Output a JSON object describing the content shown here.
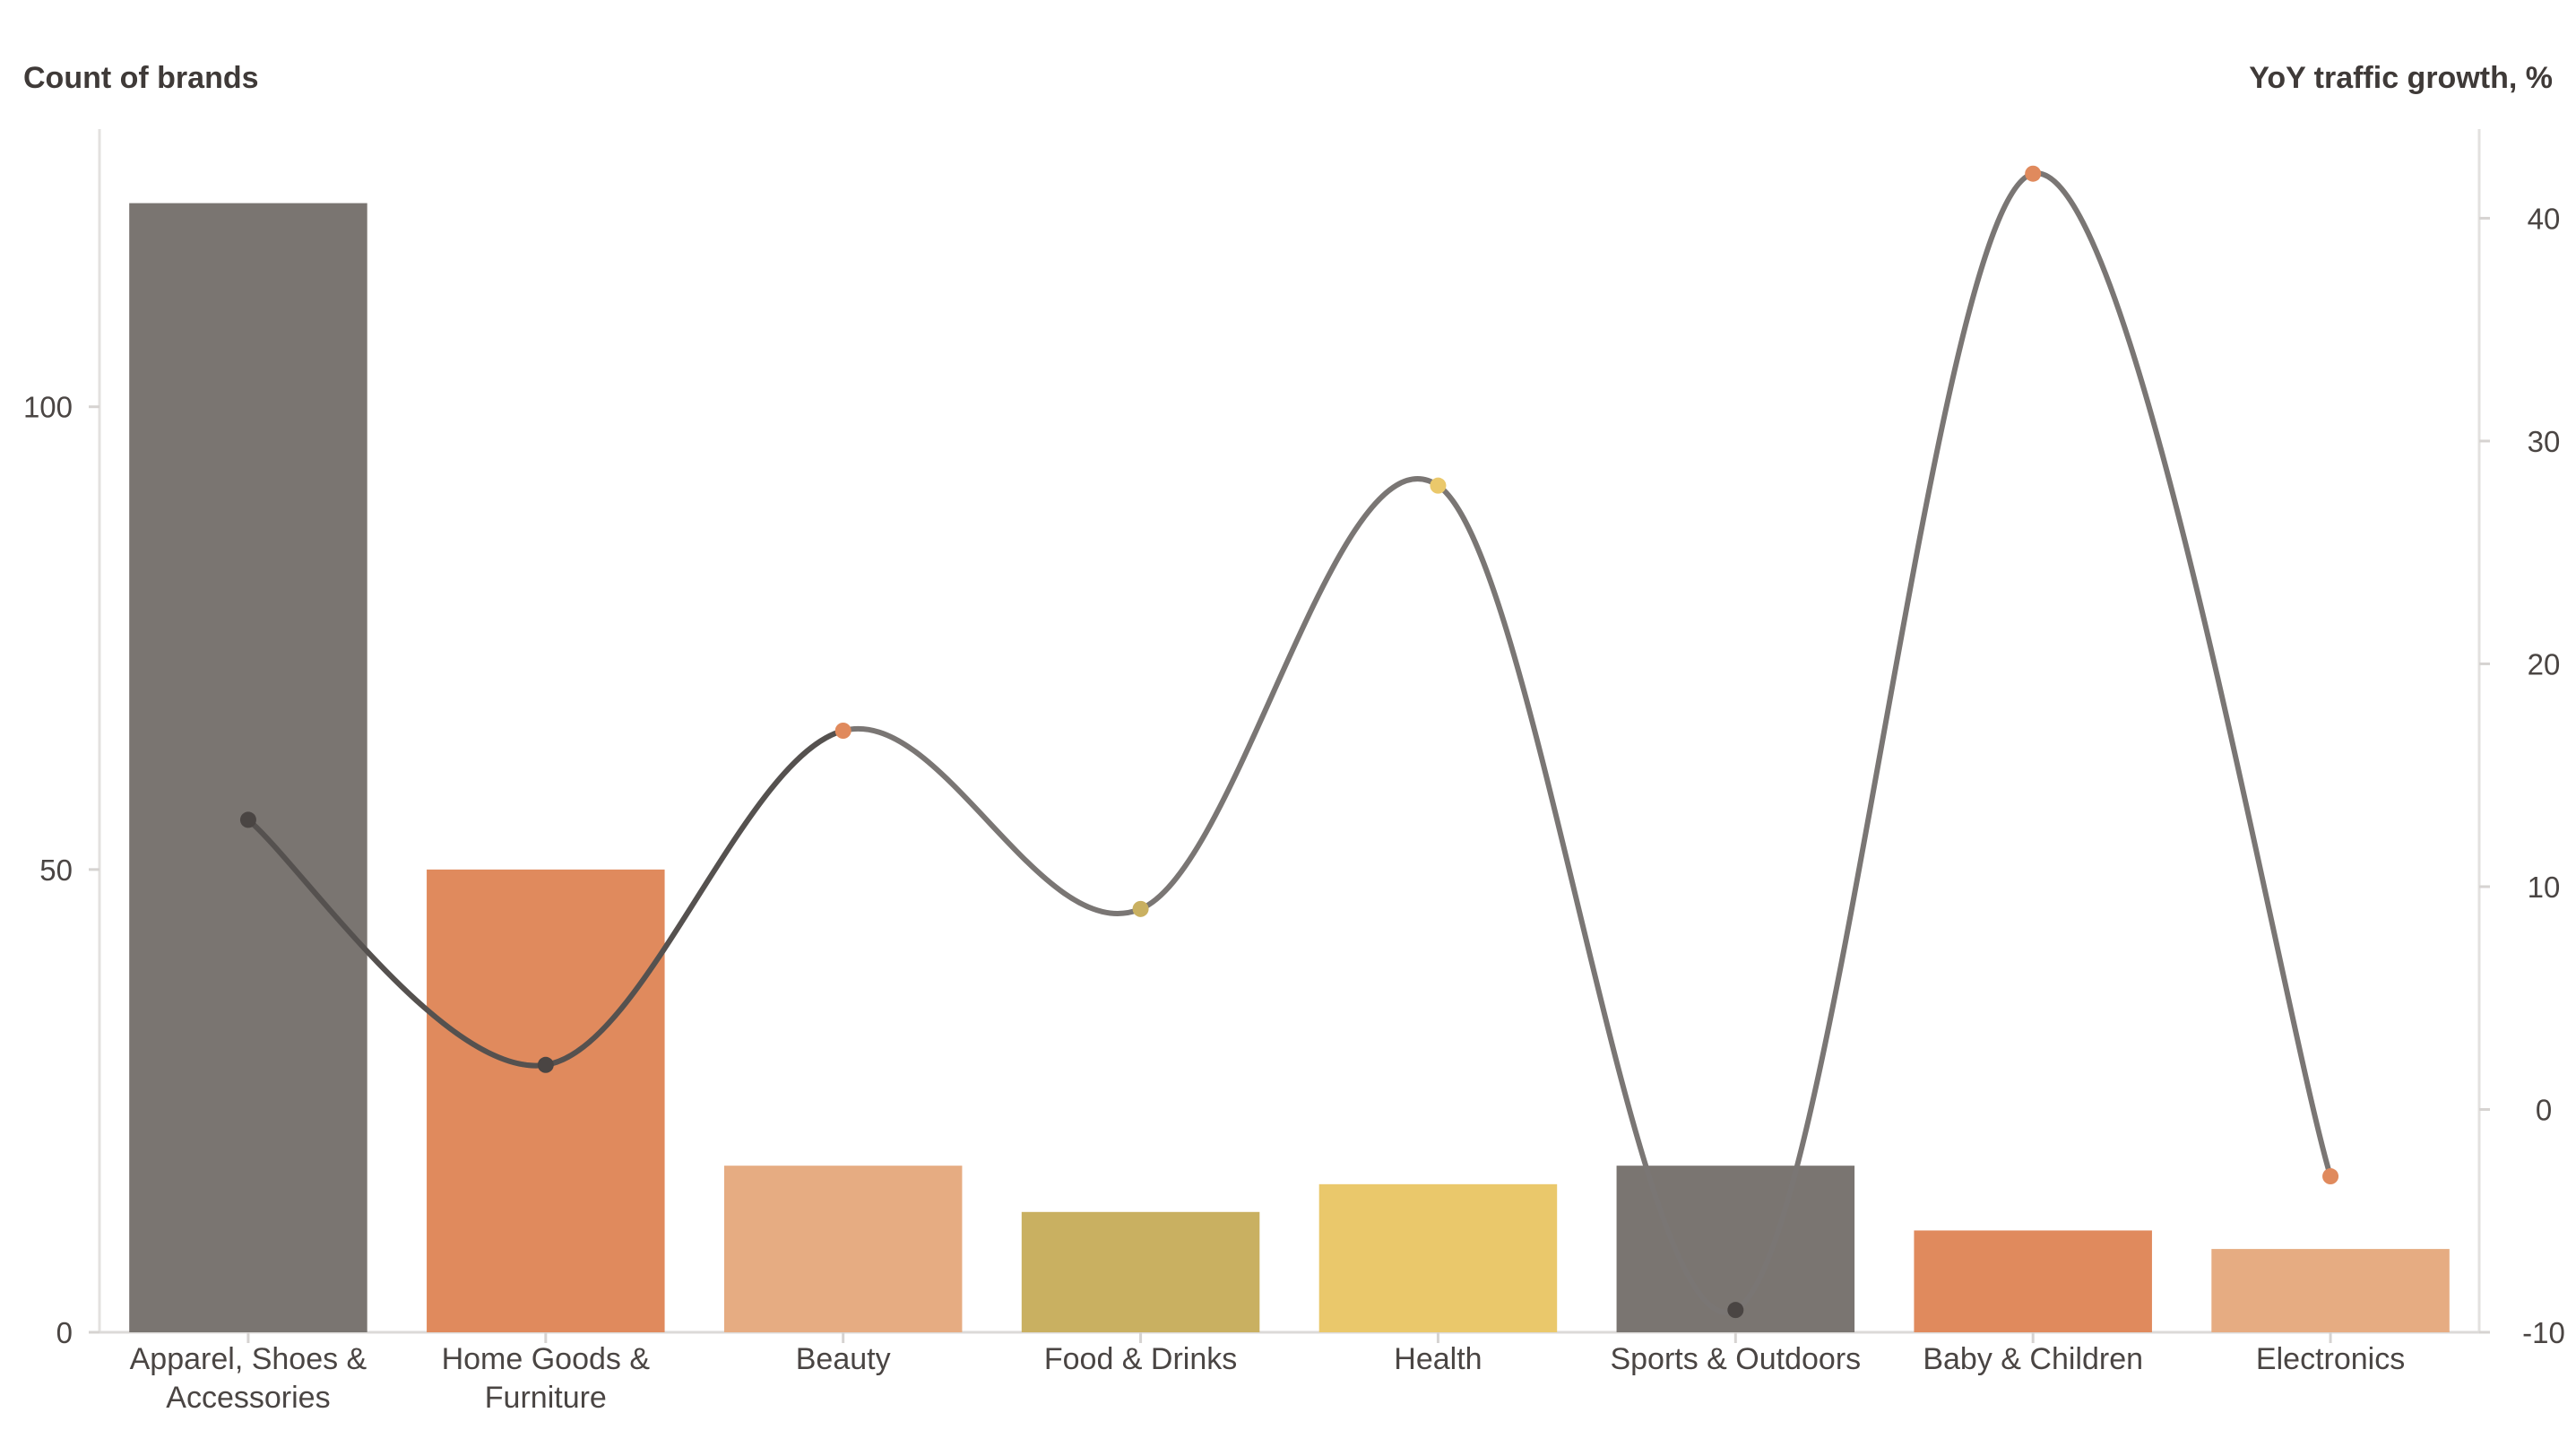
{
  "chart_data": {
    "type": "bar",
    "categories": [
      [
        "Apparel, Shoes &",
        "Accessories"
      ],
      [
        "Home Goods &",
        "Furniture"
      ],
      [
        "Beauty"
      ],
      [
        "Food & Drinks"
      ],
      [
        "Health"
      ],
      [
        "Sports & Outdoors"
      ],
      [
        "Baby & Children"
      ],
      [
        "Electronics"
      ]
    ],
    "series": [
      {
        "kind": "bar",
        "axis": "left",
        "values": [
          122,
          50,
          18,
          13,
          16,
          18,
          11,
          9
        ],
        "colors": [
          "#7a7571",
          "#e08a5d",
          "#e6ac82",
          "#c9b061",
          "#eac86b",
          "#7a7571",
          "#e08a5d",
          "#e6ac82"
        ]
      },
      {
        "kind": "line",
        "axis": "right",
        "values": [
          13,
          2,
          17,
          9,
          28,
          -9,
          42,
          -3
        ],
        "marker_colors": [
          "#4a4543",
          "#4a4543",
          "#e08a5d",
          "#c9b061",
          "#eac86b",
          "#4a4543",
          "#e08a5d",
          "#e08a5d"
        ],
        "line_color": "#7a7674",
        "highlight_color": "#4a4543"
      }
    ],
    "ylabel_left": "Count of brands",
    "ylabel_right": "YoY traffic growth, %",
    "ylim_left": [
      0,
      130
    ],
    "yticks_left": [
      0,
      50,
      100
    ],
    "ylim_right": [
      -10,
      44
    ],
    "yticks_right": [
      -10,
      0,
      10,
      20,
      30,
      40
    ],
    "grid": false
  }
}
